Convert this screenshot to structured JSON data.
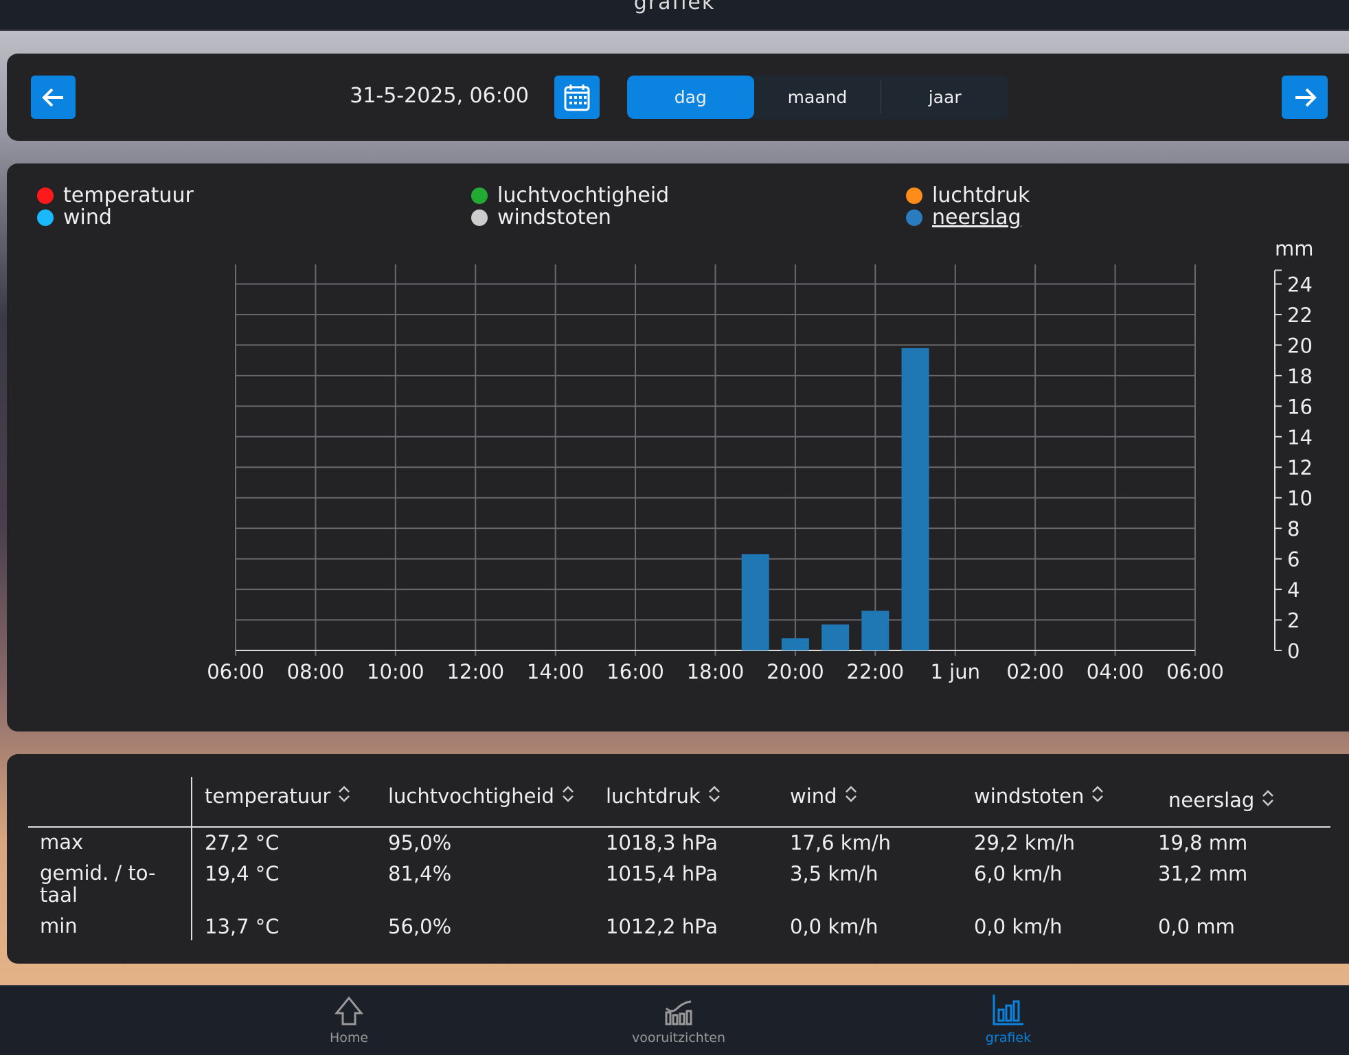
{
  "header": {
    "title": "grafiek"
  },
  "toolbar": {
    "date": "31-5-2025, 06:00",
    "prev_icon": "arrow-left-icon",
    "next_icon": "arrow-right-icon",
    "calendar_icon": "calendar-icon",
    "segments": [
      {
        "label": "dag",
        "active": true
      },
      {
        "label": "maand",
        "active": false
      },
      {
        "label": "jaar",
        "active": false
      }
    ]
  },
  "legend": [
    {
      "label": "temperatuur",
      "color": "#ff1a1a"
    },
    {
      "label": "wind",
      "color": "#1ab8ff"
    },
    {
      "label": "luchtvochtigheid",
      "color": "#22aa33"
    },
    {
      "label": "windstoten",
      "color": "#cccccc"
    },
    {
      "label": "luchtdruk",
      "color": "#ff8c1a"
    },
    {
      "label": "neerslag",
      "color": "#2a7bbf",
      "selected": true
    }
  ],
  "chart_data": {
    "type": "bar",
    "series": [
      {
        "name": "neerslag",
        "color": "#1f77b4",
        "x": [
          "19:00",
          "20:00",
          "21:00",
          "22:00",
          "23:00"
        ],
        "values": [
          6.3,
          0.8,
          1.7,
          2.6,
          19.8
        ]
      }
    ],
    "xticks": [
      "06:00",
      "08:00",
      "10:00",
      "12:00",
      "14:00",
      "16:00",
      "18:00",
      "20:00",
      "22:00",
      "1 jun",
      "02:00",
      "04:00",
      "06:00"
    ],
    "xrange_hours": [
      6,
      30
    ],
    "ylabel": "mm",
    "ylim": [
      0,
      24
    ],
    "yticks": [
      0,
      2,
      4,
      6,
      8,
      10,
      12,
      14,
      16,
      18,
      20,
      22,
      24
    ],
    "yaxis": "right",
    "grid": true
  },
  "table": {
    "columns": [
      "temperatuur",
      "luchtvochtigheid",
      "luchtdruk",
      "wind",
      "windstoten",
      "neerslag"
    ],
    "rows": [
      {
        "label": "max",
        "values": [
          "27,2 °C",
          "95,0%",
          "1018,3 hPa",
          "17,6 km/h",
          "29,2 km/h",
          "19,8 mm"
        ]
      },
      {
        "label": "gemid. / to-\ntaal",
        "values": [
          "19,4 °C",
          "81,4%",
          "1015,4 hPa",
          "3,5 km/h",
          "6,0 km/h",
          "31,2 mm"
        ]
      },
      {
        "label": "min",
        "values": [
          "13,7 °C",
          "56,0%",
          "1012,2 hPa",
          "0,0 km/h",
          "0,0 km/h",
          "0,0 mm"
        ]
      }
    ]
  },
  "bottom_nav": [
    {
      "label": "Home",
      "icon": "home-icon"
    },
    {
      "label": "vooruitzichten",
      "icon": "forecast-icon"
    },
    {
      "label": "grafiek",
      "icon": "bar-chart-icon",
      "active": true
    }
  ]
}
